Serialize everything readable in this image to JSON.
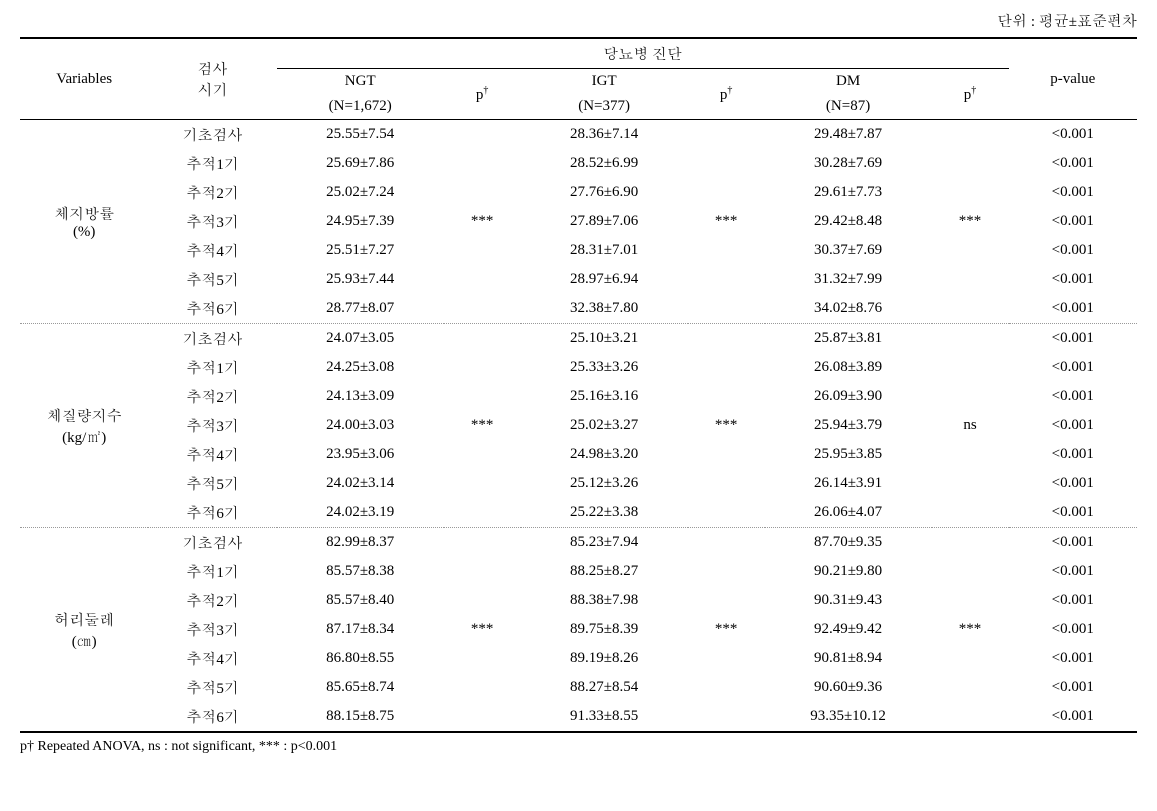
{
  "unit_label": "단위 : 평균±표준편차",
  "headers": {
    "variables": "Variables",
    "time": "검사",
    "time2": "시기",
    "diagnosis": "당뇨병 진단",
    "ngt": "NGT",
    "ngt_n": "(N=1,672)",
    "igt": "IGT",
    "igt_n": "(N=377)",
    "dm": "DM",
    "dm_n": "(N=87)",
    "p_dagger": "p",
    "p_dagger_sup": "†",
    "pvalue": "p-value"
  },
  "sections": [
    {
      "label_line1": "체지방률",
      "label_line2": "(%)",
      "p_ngt": "***",
      "p_igt": "***",
      "p_dm": "***",
      "rows": [
        {
          "time": "기초검사",
          "ngt": "25.55±7.54",
          "igt": "28.36±7.14",
          "dm": "29.48±7.87",
          "pvalue": "<0.001"
        },
        {
          "time": "추적1기",
          "ngt": "25.69±7.86",
          "igt": "28.52±6.99",
          "dm": "30.28±7.69",
          "pvalue": "<0.001"
        },
        {
          "time": "추적2기",
          "ngt": "25.02±7.24",
          "igt": "27.76±6.90",
          "dm": "29.61±7.73",
          "pvalue": "<0.001"
        },
        {
          "time": "추적3기",
          "ngt": "24.95±7.39",
          "igt": "27.89±7.06",
          "dm": "29.42±8.48",
          "pvalue": "<0.001"
        },
        {
          "time": "추적4기",
          "ngt": "25.51±7.27",
          "igt": "28.31±7.01",
          "dm": "30.37±7.69",
          "pvalue": "<0.001"
        },
        {
          "time": "추적5기",
          "ngt": "25.93±7.44",
          "igt": "28.97±6.94",
          "dm": "31.32±7.99",
          "pvalue": "<0.001"
        },
        {
          "time": "추적6기",
          "ngt": "28.77±8.07",
          "igt": "32.38±7.80",
          "dm": "34.02±8.76",
          "pvalue": "<0.001"
        }
      ]
    },
    {
      "label_line1": "체질량지수",
      "label_line2": "(kg/㎡)",
      "p_ngt": "***",
      "p_igt": "***",
      "p_dm": "ns",
      "rows": [
        {
          "time": "기초검사",
          "ngt": "24.07±3.05",
          "igt": "25.10±3.21",
          "dm": "25.87±3.81",
          "pvalue": "<0.001"
        },
        {
          "time": "추적1기",
          "ngt": "24.25±3.08",
          "igt": "25.33±3.26",
          "dm": "26.08±3.89",
          "pvalue": "<0.001"
        },
        {
          "time": "추적2기",
          "ngt": "24.13±3.09",
          "igt": "25.16±3.16",
          "dm": "26.09±3.90",
          "pvalue": "<0.001"
        },
        {
          "time": "추적3기",
          "ngt": "24.00±3.03",
          "igt": "25.02±3.27",
          "dm": "25.94±3.79",
          "pvalue": "<0.001"
        },
        {
          "time": "추적4기",
          "ngt": "23.95±3.06",
          "igt": "24.98±3.20",
          "dm": "25.95±3.85",
          "pvalue": "<0.001"
        },
        {
          "time": "추적5기",
          "ngt": "24.02±3.14",
          "igt": "25.12±3.26",
          "dm": "26.14±3.91",
          "pvalue": "<0.001"
        },
        {
          "time": "추적6기",
          "ngt": "24.02±3.19",
          "igt": "25.22±3.38",
          "dm": "26.06±4.07",
          "pvalue": "<0.001"
        }
      ]
    },
    {
      "label_line1": "허리둘레",
      "label_line2": "(㎝)",
      "p_ngt": "***",
      "p_igt": "***",
      "p_dm": "***",
      "rows": [
        {
          "time": "기초검사",
          "ngt": "82.99±8.37",
          "igt": "85.23±7.94",
          "dm": "87.70±9.35",
          "pvalue": "<0.001"
        },
        {
          "time": "추적1기",
          "ngt": "85.57±8.38",
          "igt": "88.25±8.27",
          "dm": "90.21±9.80",
          "pvalue": "<0.001"
        },
        {
          "time": "추적2기",
          "ngt": "85.57±8.40",
          "igt": "88.38±7.98",
          "dm": "90.31±9.43",
          "pvalue": "<0.001"
        },
        {
          "time": "추적3기",
          "ngt": "87.17±8.34",
          "igt": "89.75±8.39",
          "dm": "92.49±9.42",
          "pvalue": "<0.001"
        },
        {
          "time": "추적4기",
          "ngt": "86.80±8.55",
          "igt": "89.19±8.26",
          "dm": "90.81±8.94",
          "pvalue": "<0.001"
        },
        {
          "time": "추적5기",
          "ngt": "85.65±8.74",
          "igt": "88.27±8.54",
          "dm": "90.60±9.36",
          "pvalue": "<0.001"
        },
        {
          "time": "추적6기",
          "ngt": "88.15±8.75",
          "igt": "91.33±8.55",
          "dm": "93.35±10.12",
          "pvalue": "<0.001"
        }
      ]
    }
  ],
  "footnote": "p† Repeated ANOVA, ns : not significant, *** : p<0.001"
}
